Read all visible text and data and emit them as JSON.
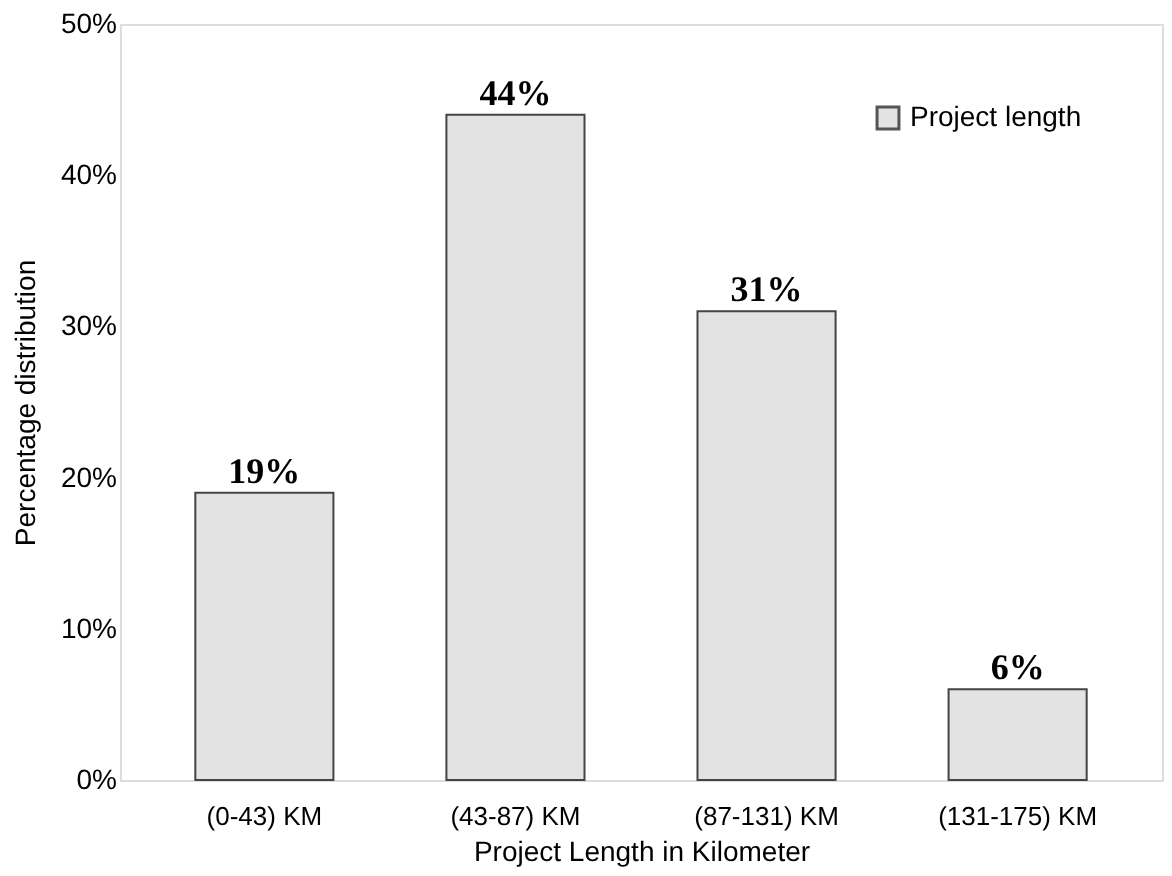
{
  "chart_data": {
    "type": "bar",
    "xlabel": "Project Length  in Kilometer",
    "ylabel": "Percentage  distribution",
    "categories": [
      "(0-43) KM",
      "(43-87) KM",
      "(87-131) KM",
      "(131-175) KM"
    ],
    "series": [
      {
        "name": "Project length",
        "color": "#e3e3e3",
        "values": [
          19,
          44,
          31,
          6
        ],
        "value_labels": [
          "19%",
          "44%",
          "31%",
          "6%"
        ]
      }
    ],
    "ylim": [
      0,
      50
    ],
    "yticks": [
      {
        "value": 0,
        "label": "0%"
      },
      {
        "value": 10,
        "label": "10%"
      },
      {
        "value": 20,
        "label": "20%"
      },
      {
        "value": 30,
        "label": "30%"
      },
      {
        "value": 40,
        "label": "40%"
      },
      {
        "value": 50,
        "label": "50%"
      }
    ],
    "grid": false,
    "legend": "top right"
  }
}
